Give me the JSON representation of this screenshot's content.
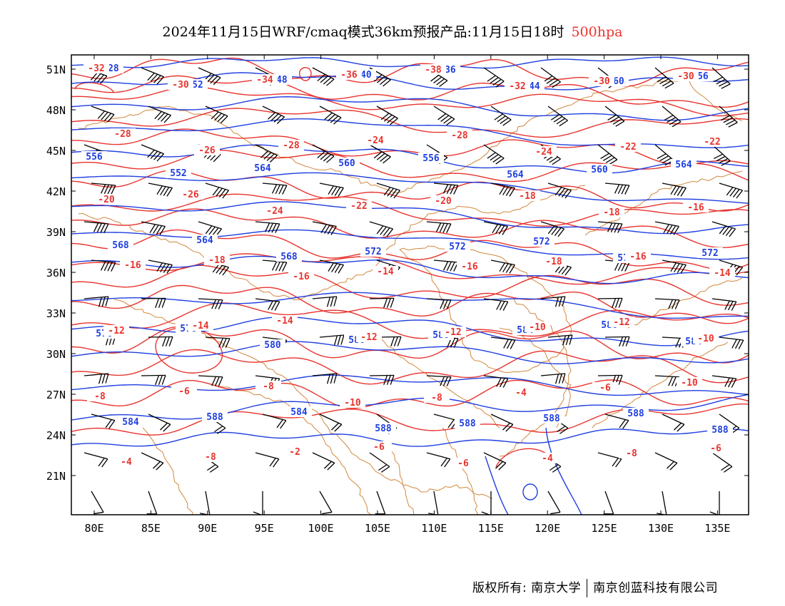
{
  "title": {
    "main": "2024年11月15日WRF/cmaq模式36km预报产品:11月15日18时",
    "level": "500hpa"
  },
  "axes": {
    "lat_labels": [
      "51N",
      "48N",
      "45N",
      "42N",
      "39N",
      "36N",
      "33N",
      "30N",
      "27N",
      "24N",
      "21N"
    ],
    "lon_labels": [
      "80E",
      "85E",
      "90E",
      "95E",
      "100E",
      "105E",
      "110E",
      "115E",
      "120E",
      "125E",
      "130E",
      "135E"
    ]
  },
  "colors": {
    "height_contour": "#1f3fe0",
    "temp_contour": "#e8342e",
    "borders": "#d2873c",
    "wind_barb": "#000000",
    "frame": "#000000"
  },
  "height_labels": [
    "528",
    "552",
    "548",
    "540",
    "536",
    "544",
    "560",
    "556",
    "556",
    "552",
    "564",
    "560",
    "556",
    "564",
    "560",
    "564",
    "568",
    "564",
    "568",
    "572",
    "572",
    "572",
    "576",
    "572",
    "576",
    "576",
    "580",
    "580",
    "580",
    "584",
    "580",
    "584",
    "584",
    "588",
    "584",
    "588",
    "588",
    "588",
    "588",
    "588"
  ],
  "temp_labels": [
    "-32",
    "-30",
    "-34",
    "-36",
    "-38",
    "-32",
    "-30",
    "-30",
    "-28",
    "-26",
    "-28",
    "-24",
    "-28",
    "-24",
    "-22",
    "-22",
    "-20",
    "-26",
    "-24",
    "-22",
    "-20",
    "-18",
    "-18",
    "-16",
    "-16",
    "-18",
    "-16",
    "-14",
    "-16",
    "-18",
    "-16",
    "-14",
    "-12",
    "-14",
    "-14",
    "-12",
    "-12",
    "-10",
    "-12",
    "-10",
    "-8",
    "-6",
    "-8",
    "-10",
    "-8",
    "-4",
    "-6",
    "-10",
    "-4",
    "-8",
    "-2",
    "-6",
    "-6",
    "-4",
    "-8",
    "-6"
  ],
  "copyright": {
    "left": "版权所有: 南京大学",
    "right": "南京创蓝科技有限公司"
  }
}
